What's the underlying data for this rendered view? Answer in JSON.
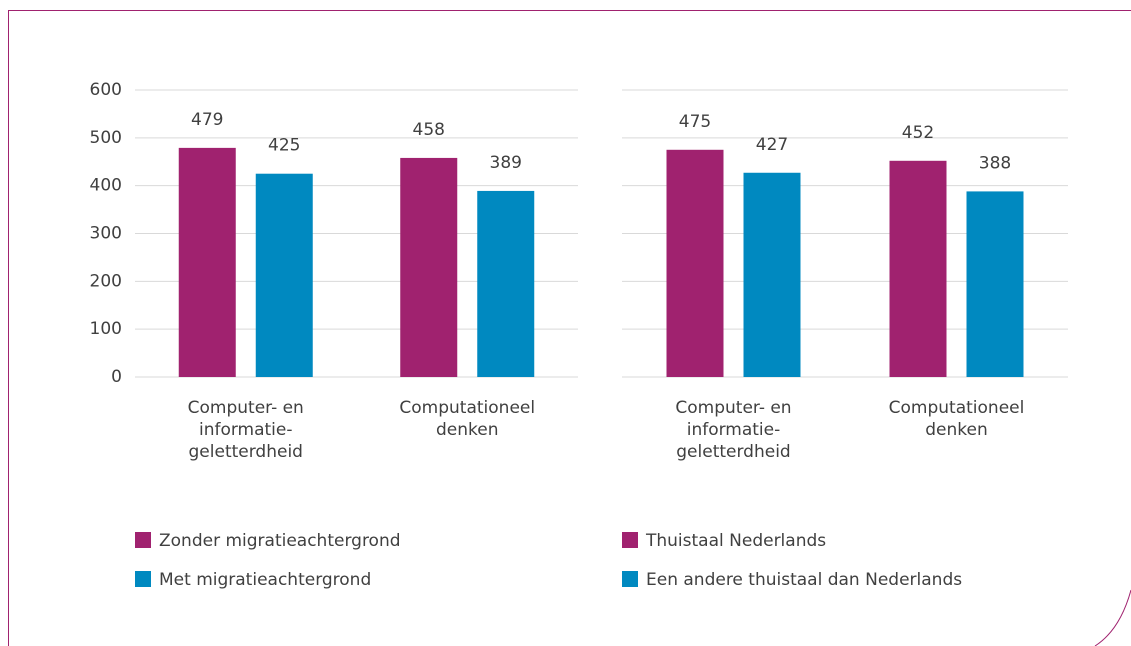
{
  "chart_data": [
    {
      "type": "bar",
      "categories": [
        "Computer- en\ninformatie-\ngeletterdheid",
        "Computationeel\ndenken"
      ],
      "series": [
        {
          "name": "Zonder migratieachtergrond",
          "color": "#a0226f",
          "values": [
            479,
            458
          ]
        },
        {
          "name": "Met migratieachtergrond",
          "color": "#0089c0",
          "values": [
            425,
            389
          ]
        }
      ],
      "ylim": [
        0,
        600
      ],
      "yticks": [
        0,
        100,
        200,
        300,
        400,
        500,
        600
      ],
      "tick_labels": true,
      "grid": true
    },
    {
      "type": "bar",
      "categories": [
        "Computer- en\ninformatie-\ngeletterdheid",
        "Computationeel\ndenken"
      ],
      "series": [
        {
          "name": "Thuistaal Nederlands",
          "color": "#a0226f",
          "values": [
            475,
            452
          ]
        },
        {
          "name": "Een andere thuistaal dan Nederlands",
          "color": "#0089c0",
          "values": [
            427,
            388
          ]
        }
      ],
      "ylim": [
        0,
        600
      ],
      "yticks": [
        0,
        100,
        200,
        300,
        400,
        500,
        600
      ],
      "tick_labels": false,
      "grid": true
    }
  ]
}
